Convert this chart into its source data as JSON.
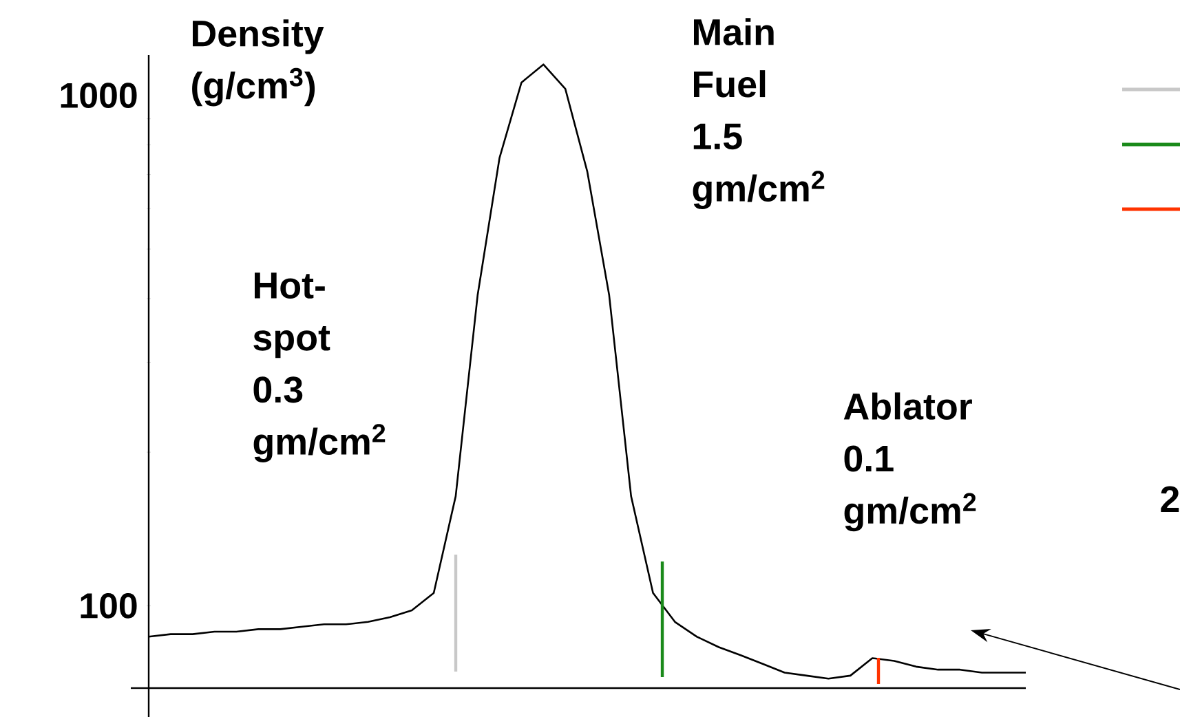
{
  "chart_data": {
    "type": "line",
    "ylabel": "Density (g/cm$^{3}$)",
    "categories": [
      null,
      null,
      null,
      null,
      null,
      null,
      null,
      null,
      null,
      null,
      null,
      null,
      null,
      null,
      null,
      null,
      null,
      null,
      null,
      null,
      null,
      null,
      null,
      null,
      null,
      null,
      null,
      null,
      null,
      null,
      null,
      null,
      null,
      null,
      null,
      null,
      null,
      null,
      null,
      null,
      null
    ],
    "series": [
      {
        "color": "#000000",
        "values": [
          87,
          88,
          88,
          89,
          89,
          90,
          90,
          91,
          92,
          92,
          93,
          95,
          98,
          106,
          164,
          406,
          755,
          1060,
          1150,
          1030,
          710,
          406,
          164,
          106,
          93,
          87,
          83,
          80,
          77,
          74,
          73,
          72,
          73,
          79,
          78,
          76,
          75,
          75,
          74,
          74,
          74
        ]
      }
    ],
    "ylim": [
      69,
      1200
    ],
    "yticks": [
      100,
      1000
    ],
    "log": "y",
    "tick_labels": "y",
    "marker": "none",
    "annotations": [
      "Hot-spot 0.3 gm/cm$^{2}$",
      "Main Fuel 1.5 gm/cm$^{2}$",
      "Ablator 0.1 gm/cm$^{2}$",
      "2"
    ]
  }
}
